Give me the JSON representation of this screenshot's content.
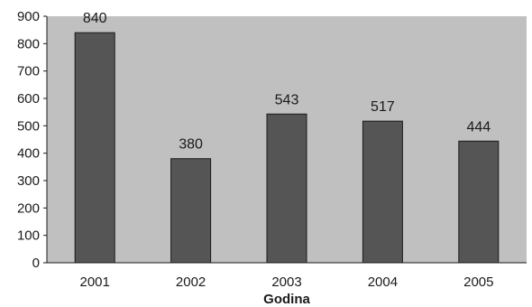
{
  "chart_data": {
    "type": "bar",
    "title": "",
    "xlabel": "Godina",
    "ylabel": "",
    "categories": [
      "2001",
      "2002",
      "2003",
      "2004",
      "2005"
    ],
    "values": [
      840,
      380,
      543,
      517,
      444
    ],
    "data_labels": [
      "840",
      "380",
      "543",
      "517",
      "444"
    ],
    "ylim": [
      0,
      900
    ],
    "yticks": [
      "0",
      "100",
      "200",
      "300",
      "400",
      "500",
      "600",
      "700",
      "800",
      "900"
    ],
    "grid": false,
    "legend": "none",
    "colors": {
      "plot_background": "#c0c0c0",
      "bar_fill": "#555555",
      "bar_stroke": "#1a1a1a",
      "axis": "#1a1a1a"
    }
  }
}
